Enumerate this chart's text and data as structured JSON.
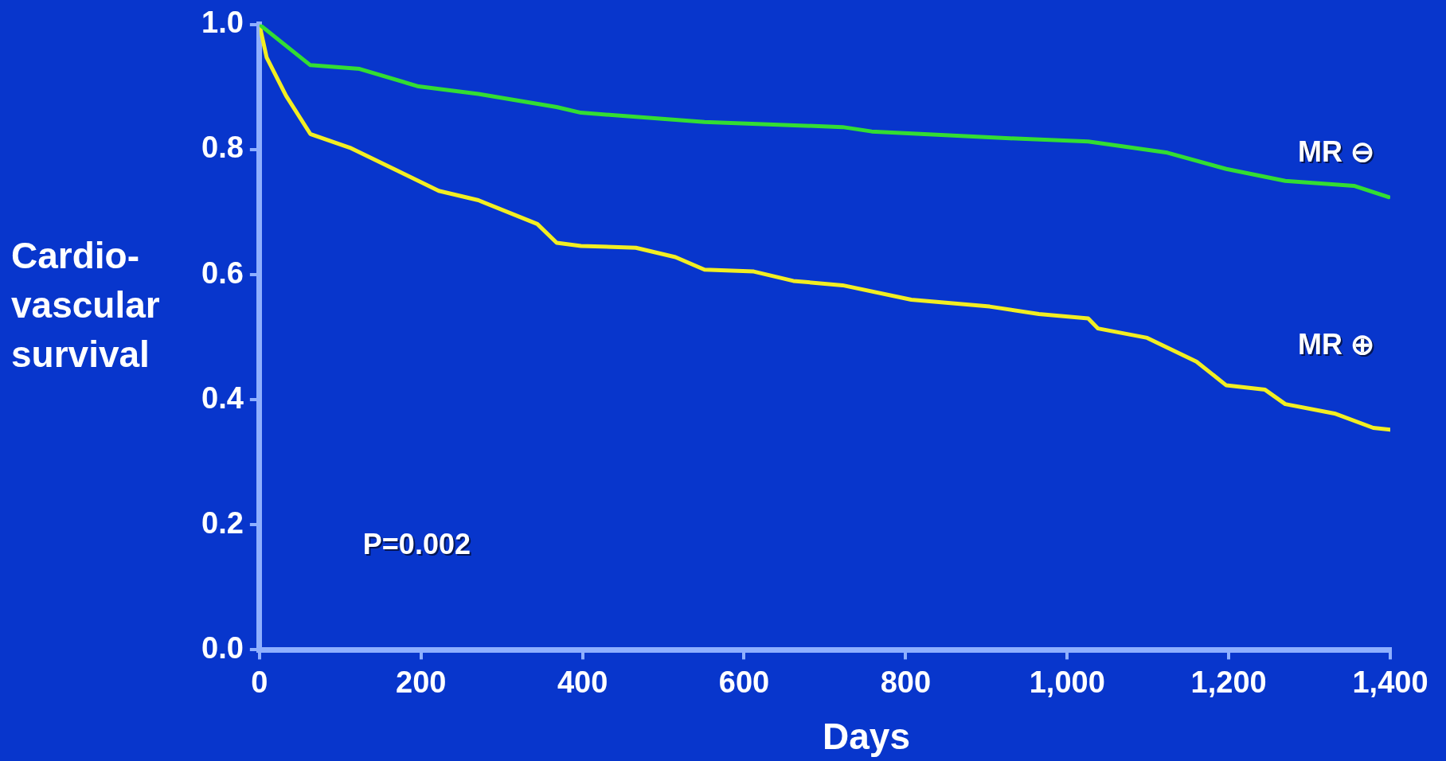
{
  "chart_data": {
    "type": "line",
    "xlabel": "Days",
    "ylabel": "Cardio-vascular survival",
    "xlim": [
      0,
      1400
    ],
    "ylim": [
      0,
      1
    ],
    "xticks": [
      0,
      200,
      400,
      600,
      800,
      {
        "value": 1000,
        "label": "1,000"
      },
      {
        "value": 1200,
        "label": "1,200"
      },
      {
        "value": 1400,
        "label": "1,400"
      }
    ],
    "yticks": [
      {
        "value": 0,
        "label": "0.0"
      },
      {
        "value": 0.2,
        "label": "0.2"
      },
      {
        "value": 0.4,
        "label": "0.4"
      },
      {
        "value": 0.6,
        "label": "0.6"
      },
      {
        "value": 0.8,
        "label": "0.8"
      },
      {
        "value": 1,
        "label": "1.0"
      }
    ],
    "grid": false,
    "legend": false,
    "marker": "none",
    "line_style": "solid",
    "annotations": [
      "P=0.002"
    ],
    "series": [
      {
        "name": "MR ⊖",
        "color": "#33dd33",
        "x": [
          0,
          63,
          124,
          197,
          271,
          368,
          398,
          551,
          722,
          758,
          929,
          1026,
          1124,
          1197,
          1270,
          1355,
          1398
        ],
        "values": [
          1.0,
          0.935,
          0.929,
          0.901,
          0.889,
          0.868,
          0.859,
          0.844,
          0.836,
          0.829,
          0.818,
          0.813,
          0.795,
          0.769,
          0.75,
          0.742,
          0.724
        ]
      },
      {
        "name": "MR ⊕",
        "color": "#f2ee22",
        "x": [
          0,
          9,
          33,
          63,
          112,
          173,
          222,
          271,
          344,
          368,
          398,
          466,
          515,
          551,
          612,
          661,
          722,
          807,
          904,
          965,
          1026,
          1038,
          1099,
          1160,
          1197,
          1245,
          1270,
          1331,
          1379,
          1400
        ],
        "values": [
          1.0,
          0.947,
          0.886,
          0.825,
          0.803,
          0.765,
          0.734,
          0.719,
          0.681,
          0.651,
          0.646,
          0.643,
          0.628,
          0.608,
          0.605,
          0.59,
          0.583,
          0.56,
          0.549,
          0.537,
          0.53,
          0.514,
          0.499,
          0.461,
          0.423,
          0.416,
          0.393,
          0.378,
          0.355,
          0.352
        ]
      }
    ]
  }
}
